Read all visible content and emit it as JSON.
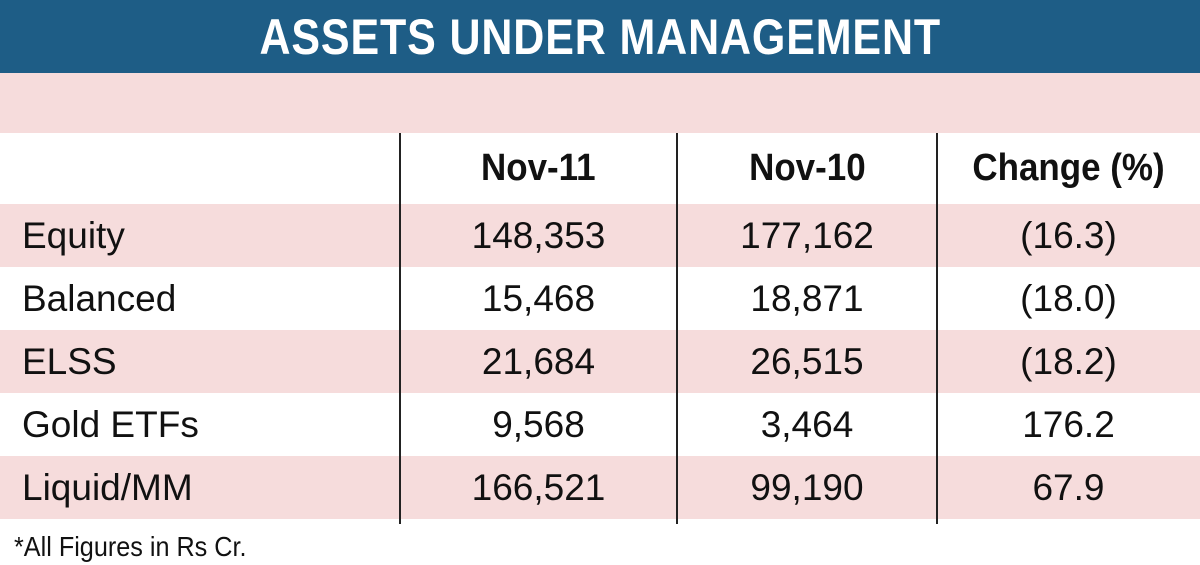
{
  "title": "ASSETS UNDER MANAGEMENT",
  "table": {
    "headers": [
      "",
      "Nov-11",
      "Nov-10",
      "Change (%)"
    ],
    "rows": [
      {
        "category": "Equity",
        "nov11": "148,353",
        "nov10": "177,162",
        "change": "(16.3)"
      },
      {
        "category": "Balanced",
        "nov11": "15,468",
        "nov10": "18,871",
        "change": "(18.0)"
      },
      {
        "category": "ELSS",
        "nov11": "21,684",
        "nov10": "26,515",
        "change": "(18.2)"
      },
      {
        "category": "Gold ETFs",
        "nov11": "9,568",
        "nov10": "3,464",
        "change": "176.2"
      },
      {
        "category": "Liquid/MM",
        "nov11": "166,521",
        "nov10": "99,190",
        "change": "67.9"
      }
    ]
  },
  "footnote": "*All Figures in Rs Cr.",
  "colors": {
    "banner": "#1e5d86",
    "row_shade": "#f6dcdc",
    "text": "#111111"
  }
}
